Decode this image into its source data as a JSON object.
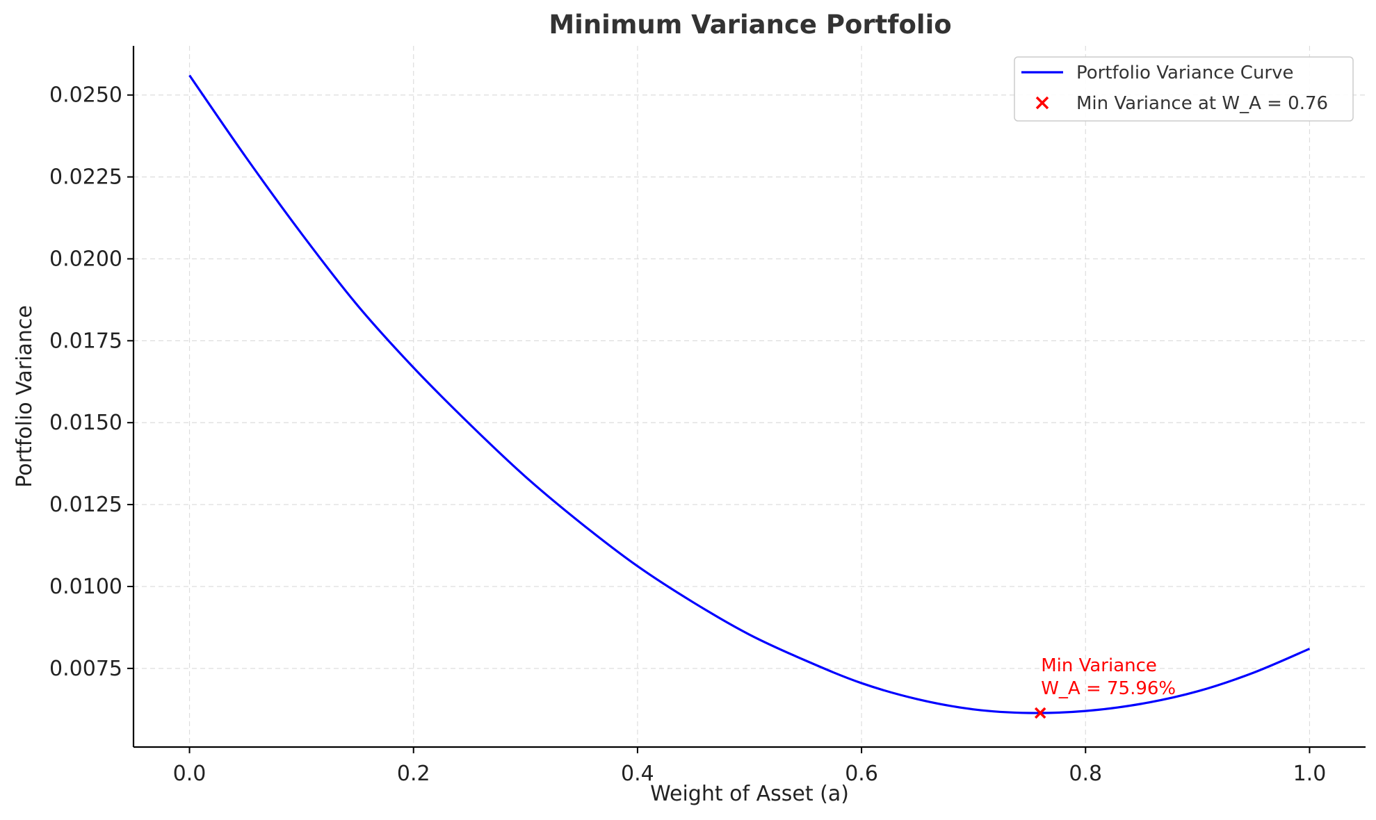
{
  "chart_data": {
    "type": "line",
    "title": "Minimum Variance Portfolio",
    "xlabel": "Weight of Asset (a)",
    "ylabel": "Portfolio Variance",
    "xlim": [
      -0.05,
      1.05
    ],
    "ylim": [
      0.0051,
      0.0265
    ],
    "x_ticks": [
      0.0,
      0.2,
      0.4,
      0.6,
      0.8,
      1.0
    ],
    "x_tick_labels": [
      "0.0",
      "0.2",
      "0.4",
      "0.6",
      "0.8",
      "1.0"
    ],
    "y_ticks": [
      0.0075,
      0.01,
      0.0125,
      0.015,
      0.0175,
      0.02,
      0.0225,
      0.025
    ],
    "y_tick_labels": [
      "0.0075",
      "0.0100",
      "0.0125",
      "0.0150",
      "0.0175",
      "0.0200",
      "0.0225",
      "0.0250"
    ],
    "grid": true,
    "legend_position": "top-right",
    "series": [
      {
        "name": "Portfolio Variance Curve",
        "color": "#0000ff",
        "x": [
          0.0,
          0.05,
          0.1,
          0.15,
          0.2,
          0.25,
          0.3,
          0.35,
          0.4,
          0.45,
          0.5,
          0.55,
          0.6,
          0.65,
          0.7,
          0.75,
          0.8,
          0.85,
          0.9,
          0.95,
          1.0
        ],
        "values": [
          0.0256,
          0.02312,
          0.02077,
          0.01858,
          0.01668,
          0.01496,
          0.01335,
          0.01192,
          0.01062,
          0.00951,
          0.00853,
          0.00774,
          0.00705,
          0.00656,
          0.00625,
          0.00614,
          0.0062,
          0.00642,
          0.0068,
          0.00737,
          0.0081
        ]
      },
      {
        "name": "Min Variance at W_A = 0.76",
        "type": "scatter",
        "marker": "x",
        "color": "#ff0000",
        "x": [
          0.7596
        ],
        "values": [
          0.00614
        ]
      }
    ],
    "annotations": [
      {
        "lines": [
          "Min Variance",
          "W_A = 75.96%"
        ],
        "x": 0.7596,
        "y": 0.00614,
        "color": "#ff0000"
      }
    ]
  }
}
